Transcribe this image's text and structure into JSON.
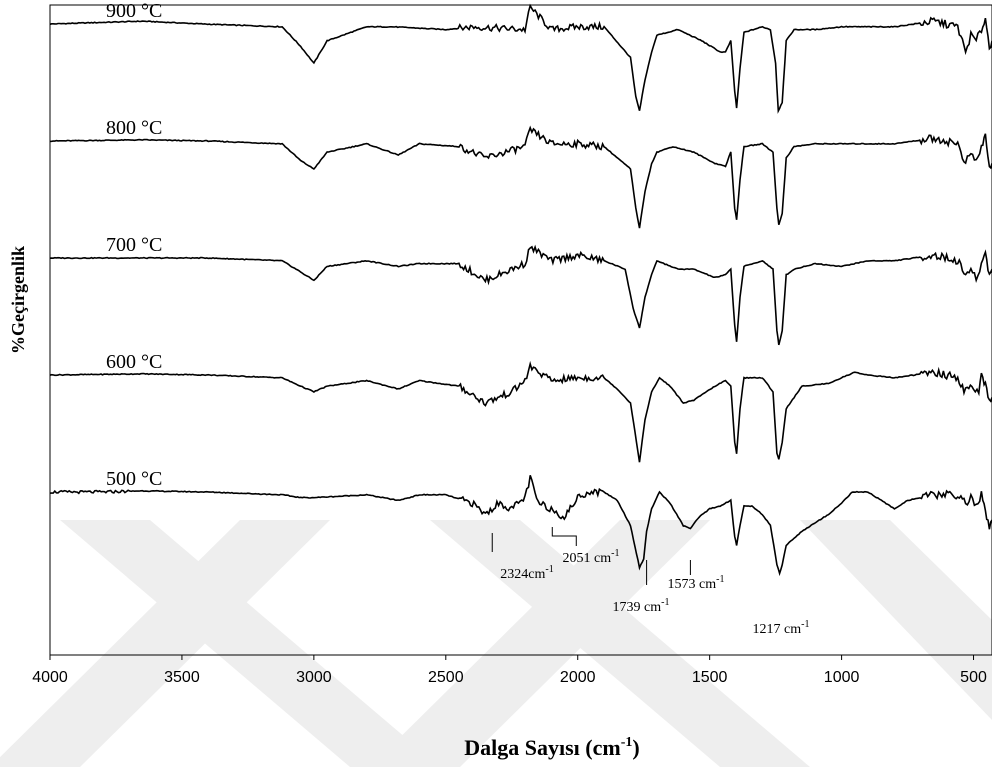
{
  "chart_data": {
    "type": "line",
    "title": "",
    "xlabel": "Dalga Sayısı (cm",
    "xlabel_sup": "-1",
    "xlabel_close": ")",
    "ylabel": "%Geçirgenlik",
    "xlim": [
      4000,
      430
    ],
    "x_reversed": true,
    "x_ticks": [
      4000,
      3500,
      3000,
      2500,
      2000,
      1500,
      1000,
      500
    ],
    "y_ticks_shown": false,
    "grid": false,
    "legend": "none",
    "line_color": "#000000",
    "series": [
      {
        "name": "900 °C",
        "offset": 4,
        "points": [
          [
            4000,
            0
          ],
          [
            3650,
            0.05
          ],
          [
            3420,
            0
          ],
          [
            3120,
            -0.05
          ],
          [
            3050,
            -0.4
          ],
          [
            3000,
            -0.7
          ],
          [
            2950,
            -0.3
          ],
          [
            2800,
            -0.05
          ],
          [
            2700,
            -0.05
          ],
          [
            2500,
            -0.1
          ],
          [
            2400,
            -0.05
          ],
          [
            2200,
            -0.1
          ],
          [
            2180,
            0.3
          ],
          [
            2100,
            -0.1
          ],
          [
            2000,
            -0.05
          ],
          [
            1900,
            -0.05
          ],
          [
            1800,
            -0.6
          ],
          [
            1780,
            -1.3
          ],
          [
            1766,
            -1.55
          ],
          [
            1745,
            -1.0
          ],
          [
            1720,
            -0.5
          ],
          [
            1700,
            -0.2
          ],
          [
            1620,
            -0.1
          ],
          [
            1530,
            -0.3
          ],
          [
            1460,
            -0.5
          ],
          [
            1440,
            -0.5
          ],
          [
            1420,
            -0.3
          ],
          [
            1405,
            -1.2
          ],
          [
            1398,
            -1.5
          ],
          [
            1385,
            -0.8
          ],
          [
            1370,
            -0.15
          ],
          [
            1300,
            -0.05
          ],
          [
            1270,
            -0.1
          ],
          [
            1250,
            -0.7
          ],
          [
            1240,
            -1.55
          ],
          [
            1225,
            -1.4
          ],
          [
            1210,
            -0.3
          ],
          [
            1180,
            -0.1
          ],
          [
            1100,
            -0.1
          ],
          [
            1000,
            -0.05
          ],
          [
            900,
            -0.05
          ],
          [
            800,
            -0.05
          ],
          [
            650,
            0.05
          ],
          [
            560,
            -0.05
          ],
          [
            530,
            -0.5
          ],
          [
            510,
            -0.2
          ],
          [
            490,
            -0.3
          ],
          [
            470,
            -0.1
          ],
          [
            455,
            0.1
          ],
          [
            440,
            -0.4
          ],
          [
            430,
            -0.3
          ]
        ]
      },
      {
        "name": "800 °C",
        "offset": 3,
        "points": [
          [
            4000,
            0
          ],
          [
            3650,
            0.02
          ],
          [
            3400,
            0
          ],
          [
            3120,
            -0.05
          ],
          [
            3050,
            -0.35
          ],
          [
            3000,
            -0.5
          ],
          [
            2950,
            -0.2
          ],
          [
            2800,
            -0.05
          ],
          [
            2680,
            -0.25
          ],
          [
            2600,
            -0.05
          ],
          [
            2450,
            -0.1
          ],
          [
            2350,
            -0.3
          ],
          [
            2200,
            -0.1
          ],
          [
            2180,
            0.2
          ],
          [
            2100,
            -0.05
          ],
          [
            2000,
            -0.05
          ],
          [
            1900,
            -0.1
          ],
          [
            1800,
            -0.5
          ],
          [
            1780,
            -1.2
          ],
          [
            1766,
            -1.55
          ],
          [
            1745,
            -0.9
          ],
          [
            1720,
            -0.4
          ],
          [
            1700,
            -0.2
          ],
          [
            1640,
            -0.1
          ],
          [
            1560,
            -0.2
          ],
          [
            1480,
            -0.4
          ],
          [
            1440,
            -0.45
          ],
          [
            1420,
            -0.2
          ],
          [
            1405,
            -1.2
          ],
          [
            1398,
            -1.4
          ],
          [
            1385,
            -0.7
          ],
          [
            1370,
            -0.1
          ],
          [
            1300,
            -0.05
          ],
          [
            1260,
            -0.2
          ],
          [
            1245,
            -1.2
          ],
          [
            1238,
            -1.5
          ],
          [
            1225,
            -1.3
          ],
          [
            1210,
            -0.3
          ],
          [
            1180,
            -0.1
          ],
          [
            1100,
            -0.05
          ],
          [
            1000,
            -0.05
          ],
          [
            900,
            -0.05
          ],
          [
            800,
            -0.05
          ],
          [
            650,
            0.05
          ],
          [
            560,
            -0.05
          ],
          [
            530,
            -0.4
          ],
          [
            510,
            -0.2
          ],
          [
            490,
            -0.4
          ],
          [
            470,
            -0.1
          ],
          [
            455,
            0.1
          ],
          [
            440,
            -0.5
          ],
          [
            430,
            -0.4
          ]
        ]
      },
      {
        "name": "700 °C",
        "offset": 2,
        "points": [
          [
            4000,
            0
          ],
          [
            3650,
            0
          ],
          [
            3400,
            0
          ],
          [
            3120,
            -0.05
          ],
          [
            3050,
            -0.25
          ],
          [
            3000,
            -0.4
          ],
          [
            2950,
            -0.15
          ],
          [
            2800,
            -0.05
          ],
          [
            2680,
            -0.15
          ],
          [
            2600,
            -0.1
          ],
          [
            2450,
            -0.1
          ],
          [
            2350,
            -0.4
          ],
          [
            2250,
            -0.2
          ],
          [
            2200,
            -0.1
          ],
          [
            2180,
            0.2
          ],
          [
            2100,
            -0.05
          ],
          [
            2000,
            0.05
          ],
          [
            1900,
            -0.05
          ],
          [
            1820,
            -0.2
          ],
          [
            1790,
            -0.9
          ],
          [
            1766,
            -1.25
          ],
          [
            1745,
            -0.7
          ],
          [
            1720,
            -0.3
          ],
          [
            1700,
            -0.05
          ],
          [
            1620,
            -0.2
          ],
          [
            1560,
            -0.2
          ],
          [
            1480,
            -0.35
          ],
          [
            1440,
            -0.3
          ],
          [
            1420,
            -0.2
          ],
          [
            1405,
            -1.2
          ],
          [
            1398,
            -1.5
          ],
          [
            1385,
            -0.7
          ],
          [
            1370,
            -0.15
          ],
          [
            1300,
            -0.05
          ],
          [
            1260,
            -0.2
          ],
          [
            1245,
            -1.3
          ],
          [
            1238,
            -1.55
          ],
          [
            1225,
            -1.3
          ],
          [
            1210,
            -0.3
          ],
          [
            1180,
            -0.2
          ],
          [
            1100,
            -0.1
          ],
          [
            1000,
            -0.15
          ],
          [
            900,
            -0.05
          ],
          [
            800,
            -0.05
          ],
          [
            650,
            0.05
          ],
          [
            560,
            -0.05
          ],
          [
            530,
            -0.3
          ],
          [
            510,
            -0.2
          ],
          [
            490,
            -0.4
          ],
          [
            470,
            -0.1
          ],
          [
            455,
            0.1
          ],
          [
            440,
            -0.3
          ],
          [
            430,
            -0.2
          ]
        ]
      },
      {
        "name": "600 °C",
        "offset": 1,
        "points": [
          [
            4000,
            0
          ],
          [
            3650,
            0.02
          ],
          [
            3400,
            0
          ],
          [
            3120,
            -0.05
          ],
          [
            3050,
            -0.2
          ],
          [
            3000,
            -0.3
          ],
          [
            2950,
            -0.2
          ],
          [
            2800,
            -0.1
          ],
          [
            2680,
            -0.25
          ],
          [
            2600,
            -0.1
          ],
          [
            2450,
            -0.2
          ],
          [
            2350,
            -0.5
          ],
          [
            2250,
            -0.3
          ],
          [
            2200,
            -0.1
          ],
          [
            2180,
            0.15
          ],
          [
            2100,
            -0.1
          ],
          [
            2000,
            -0.05
          ],
          [
            1900,
            -0.05
          ],
          [
            1850,
            -0.25
          ],
          [
            1800,
            -0.5
          ],
          [
            1766,
            -1.55
          ],
          [
            1745,
            -0.8
          ],
          [
            1720,
            -0.3
          ],
          [
            1690,
            -0.05
          ],
          [
            1650,
            -0.2
          ],
          [
            1600,
            -0.5
          ],
          [
            1560,
            -0.45
          ],
          [
            1480,
            -0.2
          ],
          [
            1440,
            -0.1
          ],
          [
            1420,
            -0.2
          ],
          [
            1405,
            -1.2
          ],
          [
            1398,
            -1.4
          ],
          [
            1385,
            -0.6
          ],
          [
            1370,
            -0.05
          ],
          [
            1300,
            -0.05
          ],
          [
            1260,
            -0.3
          ],
          [
            1245,
            -1.4
          ],
          [
            1238,
            -1.5
          ],
          [
            1225,
            -1.2
          ],
          [
            1210,
            -0.6
          ],
          [
            1150,
            -0.2
          ],
          [
            1050,
            -0.15
          ],
          [
            1000,
            -0.05
          ],
          [
            950,
            0.05
          ],
          [
            900,
            0
          ],
          [
            800,
            -0.05
          ],
          [
            650,
            0.05
          ],
          [
            560,
            -0.05
          ],
          [
            530,
            -0.3
          ],
          [
            500,
            -0.2
          ],
          [
            480,
            -0.3
          ],
          [
            470,
            0
          ],
          [
            455,
            -0.2
          ],
          [
            440,
            -0.5
          ],
          [
            430,
            -0.4
          ]
        ]
      },
      {
        "name": "500 °C",
        "offset": 0,
        "points": [
          [
            4000,
            0
          ],
          [
            3800,
            0
          ],
          [
            3650,
            0.02
          ],
          [
            3400,
            0
          ],
          [
            3120,
            -0.05
          ],
          [
            3050,
            -0.1
          ],
          [
            3000,
            -0.1
          ],
          [
            2800,
            -0.05
          ],
          [
            2680,
            -0.15
          ],
          [
            2600,
            -0.05
          ],
          [
            2500,
            -0.05
          ],
          [
            2400,
            -0.2
          ],
          [
            2350,
            -0.4
          ],
          [
            2300,
            -0.2
          ],
          [
            2250,
            -0.3
          ],
          [
            2200,
            -0.1
          ],
          [
            2180,
            0.25
          ],
          [
            2150,
            -0.2
          ],
          [
            2100,
            -0.3
          ],
          [
            2051,
            -0.45
          ],
          [
            2000,
            -0.1
          ],
          [
            1960,
            0
          ],
          [
            1900,
            0
          ],
          [
            1850,
            -0.15
          ],
          [
            1800,
            -0.6
          ],
          [
            1766,
            -1.35
          ],
          [
            1750,
            -1.2
          ],
          [
            1739,
            -0.7
          ],
          [
            1720,
            -0.3
          ],
          [
            1690,
            0
          ],
          [
            1650,
            -0.2
          ],
          [
            1600,
            -0.6
          ],
          [
            1573,
            -0.65
          ],
          [
            1540,
            -0.45
          ],
          [
            1500,
            -0.3
          ],
          [
            1460,
            -0.25
          ],
          [
            1420,
            -0.15
          ],
          [
            1405,
            -0.8
          ],
          [
            1398,
            -0.95
          ],
          [
            1385,
            -0.6
          ],
          [
            1370,
            -0.25
          ],
          [
            1340,
            -0.25
          ],
          [
            1300,
            -0.4
          ],
          [
            1270,
            -0.6
          ],
          [
            1245,
            -1.3
          ],
          [
            1235,
            -1.45
          ],
          [
            1225,
            -1.3
          ],
          [
            1210,
            -0.95
          ],
          [
            1150,
            -0.7
          ],
          [
            1050,
            -0.4
          ],
          [
            1000,
            -0.2
          ],
          [
            960,
            0
          ],
          [
            900,
            0
          ],
          [
            850,
            -0.15
          ],
          [
            800,
            -0.3
          ],
          [
            750,
            -0.15
          ],
          [
            650,
            -0.05
          ],
          [
            560,
            -0.05
          ],
          [
            530,
            -0.2
          ],
          [
            510,
            -0.1
          ],
          [
            490,
            -0.25
          ],
          [
            470,
            -0.05
          ],
          [
            455,
            -0.3
          ],
          [
            440,
            -0.7
          ],
          [
            430,
            -0.5
          ]
        ]
      }
    ],
    "annotations": [
      {
        "text": "2324cm",
        "sup": "-1",
        "x": 2324,
        "series": "500 °C"
      },
      {
        "text": "2051 cm",
        "sup": "-1",
        "x": 2051,
        "series": "500 °C"
      },
      {
        "text": "1739 cm",
        "sup": "-1",
        "x": 1739,
        "series": "500 °C"
      },
      {
        "text": "1573 cm",
        "sup": "-1",
        "x": 1573,
        "series": "500 °C"
      },
      {
        "text": "1217 cm",
        "sup": "-1",
        "x": 1217,
        "series": "500 °C"
      }
    ]
  }
}
